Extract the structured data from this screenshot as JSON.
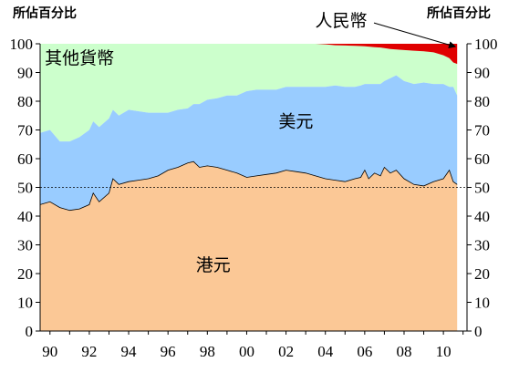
{
  "chart_data": {
    "type": "area",
    "ylabel_left": "所佔百分比",
    "ylabel_right": "所佔百分比",
    "ylim": [
      0,
      100
    ],
    "xlim": [
      1989.5,
      2011.2
    ],
    "y_ticks": [
      0,
      10,
      20,
      30,
      40,
      50,
      60,
      70,
      80,
      90,
      100
    ],
    "x_ticks": [
      {
        "value": 1990,
        "label": "90"
      },
      {
        "value": 1992,
        "label": "92"
      },
      {
        "value": 1994,
        "label": "94"
      },
      {
        "value": 1996,
        "label": "96"
      },
      {
        "value": 1998,
        "label": "98"
      },
      {
        "value": 2000,
        "label": "00"
      },
      {
        "value": 2002,
        "label": "02"
      },
      {
        "value": 2004,
        "label": "04"
      },
      {
        "value": 2006,
        "label": "06"
      },
      {
        "value": 2008,
        "label": "08"
      },
      {
        "value": 2010,
        "label": "10"
      }
    ],
    "reference_line": {
      "y": 50,
      "style": "dashed"
    },
    "x": [
      1989.5,
      1990.0,
      1990.5,
      1991.0,
      1991.5,
      1992.0,
      1992.2,
      1992.5,
      1993.0,
      1993.2,
      1993.5,
      1994.0,
      1994.5,
      1995.0,
      1995.5,
      1996.0,
      1996.5,
      1997.0,
      1997.3,
      1997.6,
      1998.0,
      1998.5,
      1999.0,
      1999.5,
      2000.0,
      2000.5,
      2001.0,
      2001.5,
      2002.0,
      2002.5,
      2003.0,
      2003.5,
      2004.0,
      2004.5,
      2005.0,
      2005.5,
      2005.8,
      2006.0,
      2006.2,
      2006.5,
      2006.8,
      2007.0,
      2007.3,
      2007.6,
      2008.0,
      2008.5,
      2009.0,
      2009.5,
      2010.0,
      2010.3,
      2010.5,
      2010.7
    ],
    "series": [
      {
        "name": "港元",
        "color": "#FBC896",
        "values": [
          44,
          45,
          43,
          42,
          42.5,
          44,
          48,
          45,
          48,
          53,
          51,
          52,
          52.5,
          53,
          54,
          56,
          57,
          58.5,
          59,
          57,
          57.5,
          57,
          56,
          55,
          53.5,
          54,
          54.5,
          55,
          56,
          55.5,
          55,
          54,
          53,
          52.5,
          52,
          53,
          53.5,
          56,
          53,
          55,
          54,
          57,
          55,
          56,
          53,
          51,
          50.5,
          52,
          53,
          56,
          52,
          51
        ]
      },
      {
        "name": "美元",
        "color": "#99CCFF",
        "values": [
          25,
          25,
          23,
          24,
          25,
          26,
          25,
          26,
          26,
          24,
          24,
          25,
          24,
          23,
          22,
          20,
          20,
          19,
          20,
          22,
          23,
          24,
          26,
          27,
          30,
          30,
          29.5,
          29,
          29,
          29.5,
          30,
          31,
          32,
          33,
          33,
          32,
          32,
          30,
          33,
          31,
          32,
          30,
          33,
          33,
          34,
          35,
          36,
          34,
          33,
          29,
          33,
          31
        ]
      },
      {
        "name": "人民幣",
        "color": "#E00000",
        "values": [
          0,
          0,
          0,
          0,
          0,
          0,
          0,
          0,
          0,
          0,
          0,
          0,
          0,
          0,
          0,
          0,
          0,
          0,
          0,
          0,
          0,
          0,
          0,
          0,
          0,
          0,
          0,
          0,
          0,
          0,
          0,
          0,
          0.2,
          0.5,
          0.6,
          0.7,
          0.8,
          0.9,
          1.0,
          1.2,
          1.3,
          1.5,
          1.8,
          2.0,
          2.2,
          2.4,
          2.6,
          3.0,
          4.0,
          5.0,
          6.5,
          7.0
        ]
      },
      {
        "name": "其他貨幣",
        "color": "#CCFFCC",
        "values": "remainder to 100"
      }
    ],
    "annotations": [
      {
        "text": "其他貨幣",
        "x": 1991.5,
        "y": 93
      },
      {
        "text": "美元",
        "x": 2002.5,
        "y": 71
      },
      {
        "text": "港元",
        "x": 1998.3,
        "y": 21
      },
      {
        "text": "人民幣",
        "x": 2004.8,
        "y": 106,
        "arrow_to": {
          "x": 2010.6,
          "y": 99
        }
      }
    ]
  }
}
